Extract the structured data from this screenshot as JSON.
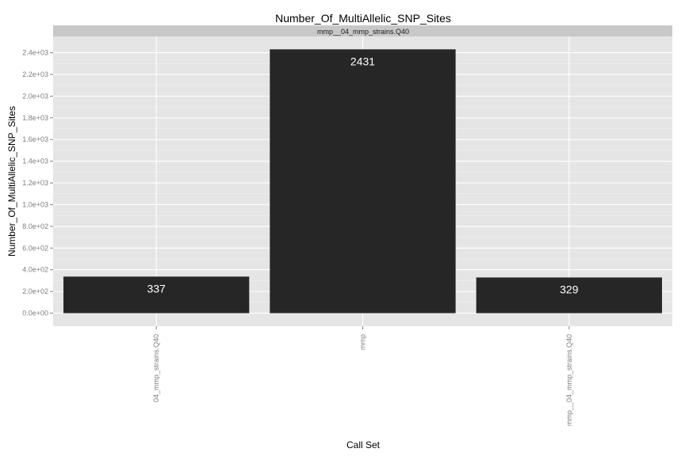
{
  "chart_data": {
    "type": "bar",
    "title": "Number_Of_MultiAllelic_SNP_Sites",
    "facet_label": "mmp__04_mmp_strains.Q40",
    "xlabel": "Call Set",
    "ylabel": "Number_Of_MultiAllelic_SNP_Sites",
    "categories": [
      "04_mmp_strains.Q40",
      "mmp",
      "mmp__04_mmp_strains.Q40"
    ],
    "values": [
      337,
      2431,
      329
    ],
    "data_labels": [
      "337",
      "2431",
      "329"
    ],
    "ylim": [
      -120,
      2550
    ],
    "yticks": [
      0,
      200,
      400,
      600,
      800,
      1000,
      1200,
      1400,
      1600,
      1800,
      2000,
      2200,
      2400
    ],
    "ytick_labels": [
      "0.0e+00",
      "2.0e+02",
      "4.0e+02",
      "6.0e+02",
      "8.0e+02",
      "1.0e+03",
      "1.2e+03",
      "1.4e+03",
      "1.6e+03",
      "1.8e+03",
      "2.0e+03",
      "2.2e+03",
      "2.4e+03"
    ],
    "grid": true,
    "legend": "none",
    "colors": {
      "bar": "#262626",
      "panel": "#e5e5e5",
      "strip": "#c8c8c8",
      "grid_major": "#ffffff",
      "grid_minor": "#f2f2f2",
      "data_label": "#ffffff",
      "tick_label": "#7f7f7f"
    }
  }
}
